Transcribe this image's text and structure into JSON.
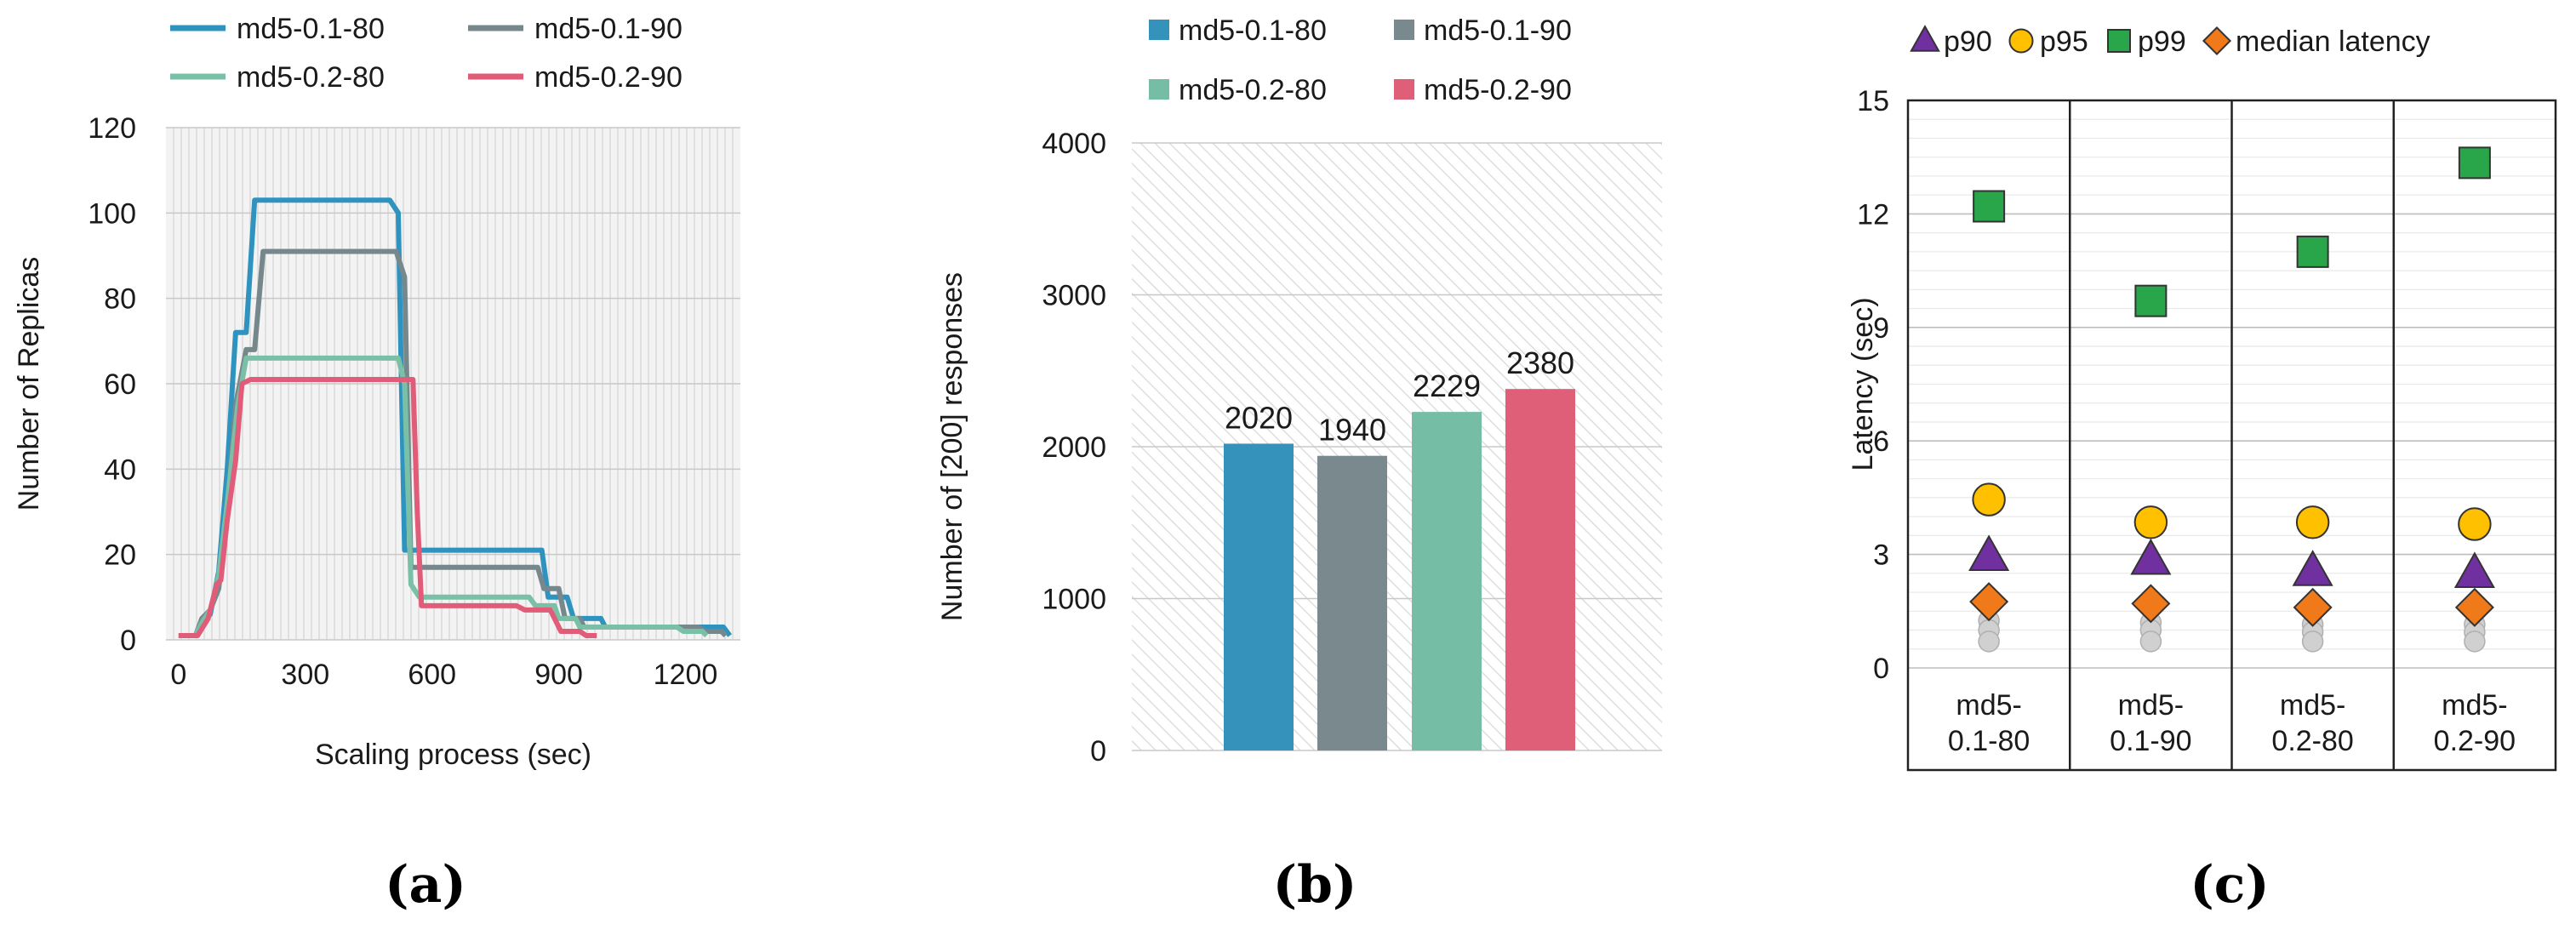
{
  "chart_data": [
    {
      "type": "line",
      "caption": "(a)",
      "xlabel": "Scaling process (sec)",
      "ylabel": "Number of Replicas",
      "xlim": [
        -30,
        1330
      ],
      "ylim": [
        0,
        120
      ],
      "xticks": [
        0,
        300,
        600,
        900,
        1200
      ],
      "yticks": [
        0,
        20,
        40,
        60,
        80,
        100,
        120
      ],
      "grid": true,
      "legend_position": "top",
      "series": [
        {
          "name": "md5-0.1-80",
          "color": "#2f93bf",
          "points": [
            [
              0,
              1
            ],
            [
              40,
              1
            ],
            [
              55,
              4
            ],
            [
              75,
              6
            ],
            [
              95,
              16
            ],
            [
              115,
              40
            ],
            [
              135,
              72
            ],
            [
              160,
              72
            ],
            [
              180,
              103
            ],
            [
              210,
              103
            ],
            [
              500,
              103
            ],
            [
              520,
              100
            ],
            [
              535,
              21
            ],
            [
              560,
              21
            ],
            [
              860,
              21
            ],
            [
              875,
              10
            ],
            [
              920,
              10
            ],
            [
              935,
              5
            ],
            [
              1000,
              5
            ],
            [
              1010,
              3
            ],
            [
              1290,
              3
            ],
            [
              1305,
              1
            ]
          ]
        },
        {
          "name": "md5-0.1-90",
          "color": "#77888d",
          "points": [
            [
              0,
              1
            ],
            [
              40,
              1
            ],
            [
              55,
              5
            ],
            [
              75,
              7
            ],
            [
              95,
              12
            ],
            [
              115,
              30
            ],
            [
              135,
              55
            ],
            [
              160,
              68
            ],
            [
              180,
              68
            ],
            [
              200,
              91
            ],
            [
              230,
              91
            ],
            [
              515,
              91
            ],
            [
              535,
              85
            ],
            [
              550,
              17
            ],
            [
              570,
              17
            ],
            [
              850,
              17
            ],
            [
              865,
              12
            ],
            [
              900,
              12
            ],
            [
              915,
              5
            ],
            [
              950,
              5
            ],
            [
              960,
              3
            ],
            [
              1230,
              3
            ],
            [
              1245,
              2
            ],
            [
              1285,
              2
            ],
            [
              1295,
              1
            ]
          ]
        },
        {
          "name": "md5-0.2-80",
          "color": "#7ac0a6",
          "points": [
            [
              0,
              1
            ],
            [
              40,
              1
            ],
            [
              55,
              4
            ],
            [
              75,
              7
            ],
            [
              95,
              15
            ],
            [
              115,
              32
            ],
            [
              140,
              55
            ],
            [
              160,
              66
            ],
            [
              180,
              66
            ],
            [
              520,
              66
            ],
            [
              535,
              60
            ],
            [
              550,
              13
            ],
            [
              570,
              10
            ],
            [
              830,
              10
            ],
            [
              845,
              8
            ],
            [
              890,
              8
            ],
            [
              900,
              5
            ],
            [
              940,
              5
            ],
            [
              950,
              3
            ],
            [
              1180,
              3
            ],
            [
              1195,
              2
            ],
            [
              1240,
              2
            ],
            [
              1250,
              1
            ]
          ]
        },
        {
          "name": "md5-0.2-90",
          "color": "#e05c78",
          "points": [
            [
              0,
              1
            ],
            [
              45,
              1
            ],
            [
              70,
              5
            ],
            [
              90,
              13
            ],
            [
              100,
              14
            ],
            [
              115,
              28
            ],
            [
              135,
              42
            ],
            [
              150,
              60
            ],
            [
              170,
              61
            ],
            [
              555,
              61
            ],
            [
              565,
              30
            ],
            [
              575,
              8
            ],
            [
              600,
              8
            ],
            [
              800,
              8
            ],
            [
              820,
              7
            ],
            [
              880,
              7
            ],
            [
              895,
              4
            ],
            [
              905,
              2
            ],
            [
              950,
              2
            ],
            [
              965,
              1
            ],
            [
              990,
              1
            ]
          ]
        }
      ]
    },
    {
      "type": "bar",
      "caption": "(b)",
      "xlabel": "",
      "ylabel": "Number of [200] responses",
      "ylim": [
        0,
        4000
      ],
      "yticks": [
        0,
        1000,
        2000,
        3000,
        4000
      ],
      "grid": true,
      "legend_position": "top",
      "categories": [
        "md5-0.1-80",
        "md5-0.1-90",
        "md5-0.2-80",
        "md5-0.2-90"
      ],
      "values": [
        2020,
        1940,
        2229,
        2380
      ],
      "data_labels": [
        "2020",
        "1940",
        "2229",
        "2380"
      ],
      "colors": [
        "#3592bb",
        "#79898d",
        "#75bda4",
        "#df5f78"
      ]
    },
    {
      "type": "scatter",
      "caption": "(c)",
      "xlabel": "",
      "ylabel": "Latency (sec)",
      "ylim": [
        0,
        15
      ],
      "yticks": [
        0,
        3,
        6,
        9,
        12,
        15
      ],
      "grid": true,
      "legend_position": "top",
      "categories": [
        "md5-\n0.1-80",
        "md5-\n0.1-90",
        "md5-\n0.2-80",
        "md5-\n0.2-90"
      ],
      "series": [
        {
          "name": "p90",
          "marker": "triangle",
          "color": "#7030a0",
          "values": [
            2.95,
            2.85,
            2.55,
            2.5
          ]
        },
        {
          "name": "p95",
          "marker": "circle",
          "color": "#ffc000",
          "values": [
            4.45,
            3.85,
            3.85,
            3.8
          ]
        },
        {
          "name": "p99",
          "marker": "square",
          "color": "#2aa64a",
          "values": [
            12.2,
            9.7,
            11.0,
            13.35
          ]
        },
        {
          "name": "median latency",
          "marker": "diamond",
          "color": "#f07a1a",
          "values": [
            1.75,
            1.7,
            1.6,
            1.6
          ]
        }
      ],
      "unlabeled_series_color": "#d0d0d0",
      "unlabeled_series": [
        [
          1.25,
          1.0,
          0.7
        ],
        [
          1.2,
          1.0,
          0.7
        ],
        [
          1.15,
          0.95,
          0.7
        ],
        [
          1.15,
          0.95,
          0.7
        ]
      ]
    }
  ]
}
